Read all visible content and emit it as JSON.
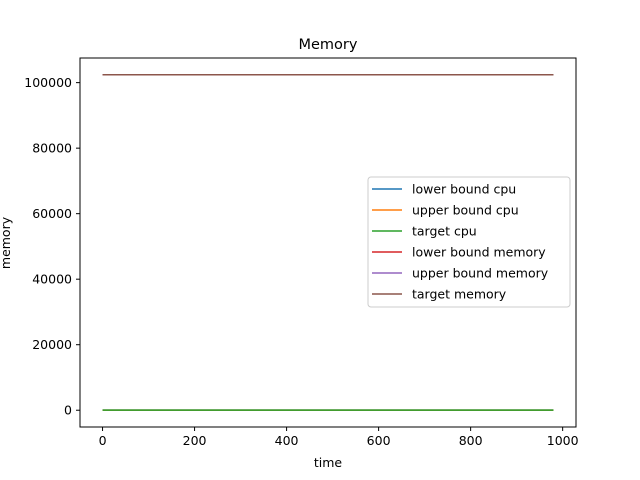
{
  "chart_data": {
    "type": "line",
    "title": "Memory",
    "xlabel": "time",
    "ylabel": "memory",
    "xlim": [
      -49,
      1029
    ],
    "ylim": [
      -5120,
      107520
    ],
    "xticks": [
      0,
      200,
      400,
      600,
      800,
      1000
    ],
    "yticks": [
      0,
      20000,
      40000,
      60000,
      80000,
      100000
    ],
    "xtick_labels": [
      "0",
      "200",
      "400",
      "600",
      "800",
      "1000"
    ],
    "ytick_labels": [
      "0",
      "20000",
      "40000",
      "60000",
      "80000",
      "100000"
    ],
    "grid": false,
    "legend_position": "center-right",
    "x": [
      0,
      980
    ],
    "series": [
      {
        "name": "lower bound cpu",
        "color": "#1f77b4",
        "values": [
          25,
          25
        ]
      },
      {
        "name": "upper bound cpu",
        "color": "#ff7f0e",
        "values": [
          25,
          25
        ]
      },
      {
        "name": "target cpu",
        "color": "#2ca02c",
        "values": [
          25,
          25
        ]
      },
      {
        "name": "lower bound memory",
        "color": "#d62728",
        "values": [
          102400,
          102400
        ]
      },
      {
        "name": "upper bound memory",
        "color": "#9467bd",
        "values": [
          102400,
          102400
        ]
      },
      {
        "name": "target memory",
        "color": "#8c564b",
        "values": [
          102400,
          102400
        ]
      }
    ]
  }
}
